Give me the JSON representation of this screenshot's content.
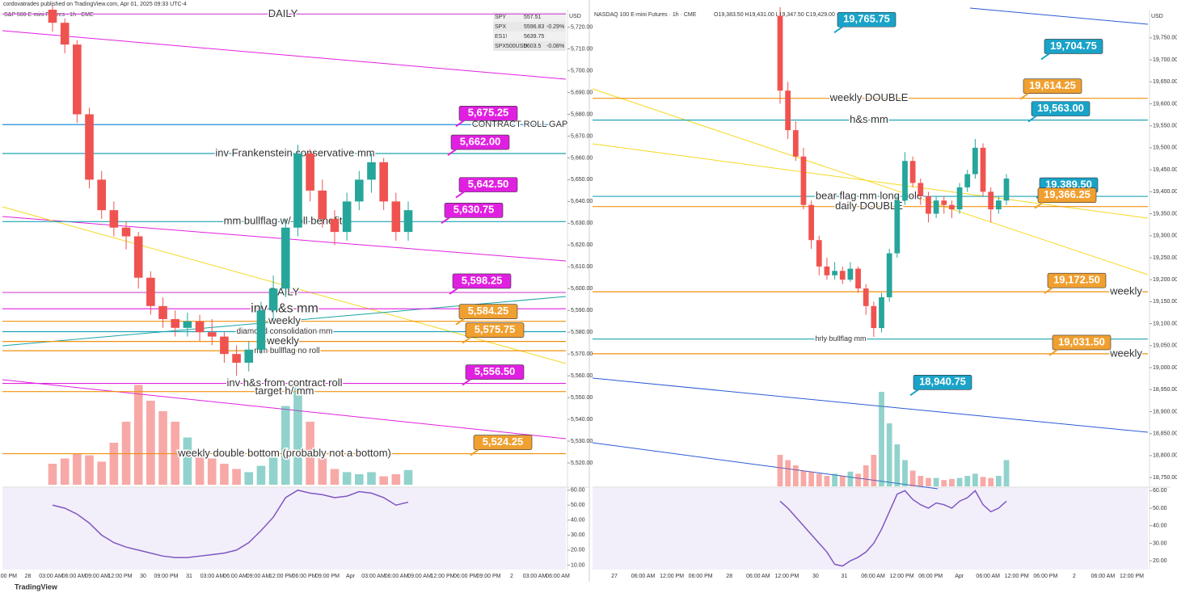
{
  "header": {
    "publisher": "cordovatrades published on TradingView.com, Apr 01, 2025 09:33 UTC-4",
    "footer": "TradingView"
  },
  "quotes": [
    [
      "SPY",
      "557.51",
      ""
    ],
    [
      "SPX",
      "5596.83",
      "-0.29%"
    ],
    [
      "ES1!",
      "5639.75",
      ""
    ],
    [
      "SPX500USD",
      "5603.5",
      "-0.08%"
    ]
  ],
  "charts": [
    {
      "type": "candlestick",
      "title": "S&P 500 E-mini Futures · 1h · CME",
      "currency": "USD",
      "ylim": [
        5510,
        5728
      ],
      "yticks": [
        {
          "value": 5720,
          "label": "5,720.00"
        },
        {
          "value": 5710,
          "label": "5,710.00"
        },
        {
          "value": 5700,
          "label": "5,700.00"
        },
        {
          "value": 5690,
          "label": "5,690.00"
        },
        {
          "value": 5680,
          "label": "5,680.00"
        },
        {
          "value": 5670,
          "label": "5,670.00"
        },
        {
          "value": 5660,
          "label": "5,660.00"
        },
        {
          "value": 5650,
          "label": "5,650.00"
        },
        {
          "value": 5640,
          "label": "5,640.00"
        },
        {
          "value": 5630,
          "label": "5,630.00"
        },
        {
          "value": 5620,
          "label": "5,620.00"
        },
        {
          "value": 5610,
          "label": "5,610.00"
        },
        {
          "value": 5600,
          "label": "5,600.00"
        },
        {
          "value": 5590,
          "label": "5,590.00"
        },
        {
          "value": 5580,
          "label": "5,580.00"
        },
        {
          "value": 5570,
          "label": "5,570.00"
        },
        {
          "value": 5560,
          "label": "5,560.00"
        },
        {
          "value": 5550,
          "label": "5,550.00"
        },
        {
          "value": 5540,
          "label": "5,540.00"
        },
        {
          "value": 5530,
          "label": "5,530.00"
        },
        {
          "value": 5520,
          "label": "5,520.00"
        }
      ],
      "time_labels": [
        "09:00 PM",
        "28",
        "03:00 AM",
        "06:00 AM",
        "09:00 AM",
        "12:00 PM",
        "30",
        "09:00 PM",
        "31",
        "03:00 AM",
        "06:00 AM",
        "09:00 AM",
        "12:00 PM",
        "06:00 PM",
        "09:00 PM",
        "Apr",
        "03:00 AM",
        "06:00 AM",
        "09:00 AM",
        "12:00 PM",
        "06:00 PM",
        "09:00 PM",
        "2",
        "03:00 AM",
        "06:00 AM"
      ],
      "candles": [
        [
          5728,
          5730,
          5718,
          5722
        ],
        [
          5722,
          5724,
          5708,
          5712
        ],
        [
          5712,
          5714,
          5676,
          5680
        ],
        [
          5680,
          5683,
          5646,
          5650
        ],
        [
          5650,
          5654,
          5632,
          5636
        ],
        [
          5636,
          5640,
          5624,
          5628
        ],
        [
          5628,
          5631,
          5618,
          5624
        ],
        [
          5624,
          5626,
          5600,
          5605
        ],
        [
          5605,
          5608,
          5588,
          5592
        ],
        [
          5592,
          5596,
          5582,
          5586
        ],
        [
          5586,
          5590,
          5578,
          5582
        ],
        [
          5582,
          5589,
          5578,
          5585
        ],
        [
          5585,
          5588,
          5576,
          5580
        ],
        [
          5580,
          5586,
          5574,
          5578
        ],
        [
          5578,
          5580,
          5566,
          5570
        ],
        [
          5570,
          5574,
          5560,
          5566
        ],
        [
          5566,
          5576,
          5562,
          5572
        ],
        [
          5572,
          5594,
          5570,
          5590
        ],
        [
          5590,
          5606,
          5586,
          5600
        ],
        [
          5600,
          5632,
          5596,
          5628
        ],
        [
          5628,
          5666,
          5624,
          5662
        ],
        [
          5662,
          5664,
          5640,
          5645
        ],
        [
          5645,
          5650,
          5628,
          5632
        ],
        [
          5632,
          5636,
          5620,
          5626
        ],
        [
          5626,
          5644,
          5622,
          5640
        ],
        [
          5640,
          5654,
          5636,
          5650
        ],
        [
          5650,
          5662,
          5644,
          5658
        ],
        [
          5658,
          5660,
          5636,
          5640
        ],
        [
          5640,
          5644,
          5622,
          5626
        ],
        [
          5626,
          5640,
          5622,
          5636
        ]
      ],
      "volume": [
        20,
        25,
        30,
        28,
        22,
        40,
        60,
        95,
        80,
        70,
        60,
        45,
        30,
        25,
        20,
        15,
        12,
        18,
        30,
        75,
        95,
        60,
        25,
        15,
        12,
        10,
        12,
        8,
        10,
        14
      ],
      "rsi": [
        50,
        48,
        44,
        38,
        30,
        25,
        22,
        20,
        18,
        16,
        15,
        15,
        16,
        17,
        18,
        20,
        25,
        33,
        42,
        55,
        60,
        58,
        57,
        55,
        56,
        59,
        58,
        55,
        50,
        52
      ],
      "rsi_lim": [
        7,
        62
      ],
      "rsi_ticks": [
        {
          "value": 60,
          "label": "60.00"
        },
        {
          "value": 50,
          "label": "50.00"
        },
        {
          "value": 40,
          "label": "40.00"
        },
        {
          "value": 30,
          "label": "30.00"
        },
        {
          "value": 20,
          "label": "20.00"
        },
        {
          "value": 10,
          "label": "10.00"
        }
      ],
      "levels": [
        {
          "text": "DAILY",
          "value": 5726,
          "color": "#d65ad6"
        },
        {
          "text": "inv Frankenstein conservative mm",
          "value": 5662,
          "color": "#1fa3b5"
        },
        {
          "text": "mm bullflag w/ roll benefit",
          "value": 5630.75,
          "color": "#1fa3b5"
        },
        {
          "text": "CONTRACT ROLL GAP",
          "value": 5675.25,
          "color": "#1f8fd6"
        },
        {
          "text": "DAILY",
          "value": 5598.25,
          "color": "#d65ad6"
        },
        {
          "text": "inv h&s mm",
          "value": 5590.75,
          "color": "#e020e0"
        },
        {
          "text": "weekly",
          "value": 5585,
          "color": "#f0900c"
        },
        {
          "text": "diamond consolidation mm",
          "value": 5580.25,
          "color": "#1fa3b5"
        },
        {
          "text": "weekly",
          "value": 5575.75,
          "color": "#f0900c"
        },
        {
          "text": "mm bullflag no roll",
          "value": 5571.5,
          "color": "#f0900c"
        },
        {
          "text": "inv h&s from contract roll",
          "value": 5556.5,
          "color": "#e020e0"
        },
        {
          "text": "target h/ mm",
          "value": 5552.75,
          "color": "#f0900c"
        },
        {
          "text": "weekly double bottom (probably not a bottom)",
          "value": 5524.25,
          "color": "#f0900c"
        }
      ],
      "price_tags": [
        {
          "value": 5675.25,
          "label": "5,675.25",
          "color": "#e020e0"
        },
        {
          "value": 5662,
          "label": "5,662.00",
          "color": "#e020e0"
        },
        {
          "value": 5642.5,
          "label": "5,642.50",
          "color": "#e020e0"
        },
        {
          "value": 5630.75,
          "label": "5,630.75",
          "color": "#e020e0"
        },
        {
          "value": 5598.25,
          "label": "5,598.25",
          "color": "#e020e0"
        },
        {
          "value": 5584.25,
          "label": "5,584.25",
          "color": "#f0a030"
        },
        {
          "value": 5575.75,
          "label": "5,575.75",
          "color": "#f0a030"
        },
        {
          "value": 5556.5,
          "label": "5,556.50",
          "color": "#e020e0"
        },
        {
          "value": 5524.25,
          "label": "5,524.25",
          "color": "#f0a030"
        }
      ]
    },
    {
      "type": "candlestick",
      "title": "NASDAQ 100 E-mini Futures · 1h · CME",
      "ohlc": "O19,383.50 H19,431.00 L19,347.50 C19,429.00 +47.00 (+0.24%)",
      "currency": "USD",
      "ylim": [
        18730,
        19814
      ],
      "yticks": [
        {
          "value": 19750,
          "label": "19,750.00"
        },
        {
          "value": 19700,
          "label": "19,700.00"
        },
        {
          "value": 19650,
          "label": "19,650.00"
        },
        {
          "value": 19600,
          "label": "19,600.00"
        },
        {
          "value": 19550,
          "label": "19,550.00"
        },
        {
          "value": 19500,
          "label": "19,500.00"
        },
        {
          "value": 19450,
          "label": "19,450.00"
        },
        {
          "value": 19400,
          "label": "19,400.00"
        },
        {
          "value": 19350,
          "label": "19,350.00"
        },
        {
          "value": 19300,
          "label": "19,300.00"
        },
        {
          "value": 19250,
          "label": "19,250.00"
        },
        {
          "value": 19200,
          "label": "19,200.00"
        },
        {
          "value": 19150,
          "label": "19,150.00"
        },
        {
          "value": 19100,
          "label": "19,100.00"
        },
        {
          "value": 19050,
          "label": "19,050.00"
        },
        {
          "value": 19000,
          "label": "19,000.00"
        },
        {
          "value": 18950,
          "label": "18,950.00"
        },
        {
          "value": 18900,
          "label": "18,900.00"
        },
        {
          "value": 18850,
          "label": "18,850.00"
        },
        {
          "value": 18800,
          "label": "18,800.00"
        },
        {
          "value": 18750,
          "label": "18,750.00"
        }
      ],
      "time_labels": [
        "27",
        "06:00 AM",
        "12:00 PM",
        "06:00 PM",
        "28",
        "06:00 AM",
        "12:00 PM",
        "30",
        "31",
        "06:00 AM",
        "12:00 PM",
        "06:00 PM",
        "Apr",
        "06:00 AM",
        "12:00 PM",
        "06:00 PM",
        "2",
        "06:00 AM",
        "12:00 PM"
      ],
      "candles": [
        [
          19800,
          19820,
          19600,
          19630
        ],
        [
          19630,
          19650,
          19520,
          19540
        ],
        [
          19540,
          19560,
          19470,
          19480
        ],
        [
          19480,
          19500,
          19360,
          19370
        ],
        [
          19370,
          19380,
          19270,
          19290
        ],
        [
          19290,
          19300,
          19210,
          19230
        ],
        [
          19230,
          19250,
          19200,
          19210
        ],
        [
          19210,
          19240,
          19200,
          19220
        ],
        [
          19220,
          19230,
          19190,
          19200
        ],
        [
          19200,
          19240,
          19195,
          19225
        ],
        [
          19225,
          19230,
          19170,
          19180
        ],
        [
          19180,
          19190,
          19120,
          19140
        ],
        [
          19140,
          19150,
          19070,
          19090
        ],
        [
          19090,
          19170,
          19080,
          19160
        ],
        [
          19160,
          19270,
          19150,
          19260
        ],
        [
          19260,
          19390,
          19250,
          19380
        ],
        [
          19380,
          19490,
          19370,
          19470
        ],
        [
          19470,
          19480,
          19410,
          19420
        ],
        [
          19420,
          19430,
          19370,
          19390
        ],
        [
          19390,
          19400,
          19330,
          19350
        ],
        [
          19350,
          19390,
          19340,
          19380
        ],
        [
          19380,
          19390,
          19350,
          19370
        ],
        [
          19370,
          19380,
          19340,
          19360
        ],
        [
          19360,
          19420,
          19350,
          19410
        ],
        [
          19410,
          19450,
          19400,
          19440
        ],
        [
          19440,
          19520,
          19430,
          19500
        ],
        [
          19500,
          19510,
          19390,
          19400
        ],
        [
          19400,
          19410,
          19330,
          19360
        ],
        [
          19360,
          19390,
          19350,
          19380
        ],
        [
          19380,
          19440,
          19370,
          19430
        ]
      ],
      "volume": [
        30,
        25,
        20,
        15,
        14,
        12,
        10,
        12,
        10,
        14,
        12,
        20,
        30,
        90,
        60,
        40,
        25,
        15,
        10,
        8,
        8,
        6,
        7,
        8,
        10,
        12,
        9,
        8,
        10,
        25
      ],
      "rsi": [
        54,
        50,
        45,
        40,
        35,
        30,
        25,
        18,
        17,
        20,
        22,
        25,
        30,
        38,
        48,
        58,
        60,
        55,
        52,
        50,
        53,
        52,
        50,
        54,
        56,
        60,
        52,
        48,
        50,
        54
      ],
      "rsi_lim": [
        15,
        62
      ],
      "rsi_ticks": [
        {
          "value": 60,
          "label": "60.00"
        },
        {
          "value": 50,
          "label": "50.00"
        },
        {
          "value": 40,
          "label": "40.00"
        },
        {
          "value": 30,
          "label": "30.00"
        },
        {
          "value": 20,
          "label": "20.00"
        }
      ],
      "levels": [
        {
          "text": "weekly DOUBLE",
          "value": 19612.5,
          "color": "#f0900c"
        },
        {
          "text": "h&s mm",
          "value": 19563,
          "color": "#1fa3b5"
        },
        {
          "text": "bear flag mm long pole",
          "value": 19389.5,
          "color": "#1fa3b5"
        },
        {
          "text": "daily DOUBLE",
          "value": 19366.25,
          "color": "#f0900c"
        },
        {
          "text": "weekly",
          "value": 19172.5,
          "color": "#f0900c"
        },
        {
          "text": "hrly bullflag mm",
          "value": 19065,
          "color": "#1fa3b5"
        },
        {
          "text": "weekly",
          "value": 19031.5,
          "color": "#f0900c"
        }
      ],
      "price_tags": [
        {
          "value": 19765.75,
          "label": "19,765.75",
          "color": "#1aa3c8"
        },
        {
          "value": 19704.75,
          "label": "19,704.75",
          "color": "#1aa3c8"
        },
        {
          "value": 19614.25,
          "label": "19,614.25",
          "color": "#f0a030"
        },
        {
          "value": 19563,
          "label": "19,563.00",
          "color": "#1aa3c8"
        },
        {
          "value": 19389.5,
          "label": "19.389.50",
          "color": "#1aa3c8"
        },
        {
          "value": 19366.25,
          "label": "19,366.25",
          "color": "#f0a030"
        },
        {
          "value": 19172.5,
          "label": "19,172.50",
          "color": "#f0a030"
        },
        {
          "value": 19031.5,
          "label": "19,031.50",
          "color": "#f0a030"
        },
        {
          "value": 18940.75,
          "label": "18,940.75",
          "color": "#1aa3c8"
        }
      ]
    }
  ]
}
